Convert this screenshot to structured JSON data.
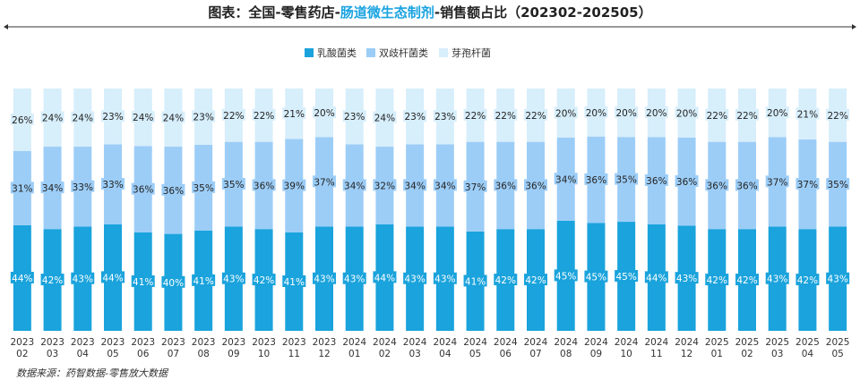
{
  "title": {
    "prefix": "图表：全国-零售药店-",
    "highlight": "肠道微生态制剂",
    "suffix": "-销售额占比（202302-202505）"
  },
  "source": "数据来源：药智数据-零售放大数据",
  "colors": {
    "s1": "#1aa3dc",
    "s2": "#9ccdf7",
    "s3": "#d7eefb",
    "accent": "#1aa3e0"
  },
  "chart_data": {
    "type": "bar",
    "stacked": true,
    "percent": true,
    "legend_position": "top",
    "categories": [
      "2023\n02",
      "2023\n03",
      "2023\n04",
      "2023\n05",
      "2023\n06",
      "2023\n07",
      "2023\n08",
      "2023\n09",
      "2023\n10",
      "2023\n11",
      "2023\n12",
      "2024\n01",
      "2024\n02",
      "2024\n03",
      "2024\n04",
      "2024\n05",
      "2024\n06",
      "2024\n07",
      "2024\n08",
      "2024\n09",
      "2024\n10",
      "2024\n11",
      "2024\n12",
      "2025\n01",
      "2025\n02",
      "2025\n03",
      "2025\n04",
      "2025\n05"
    ],
    "series": [
      {
        "name": "乳酸菌类",
        "values": [
          44,
          42,
          43,
          44,
          41,
          40,
          41,
          43,
          42,
          41,
          43,
          43,
          44,
          43,
          43,
          41,
          42,
          42,
          45,
          45,
          45,
          44,
          43,
          42,
          42,
          43,
          42,
          43
        ]
      },
      {
        "name": "双歧杆菌类",
        "values": [
          31,
          34,
          33,
          33,
          36,
          36,
          35,
          35,
          36,
          39,
          37,
          34,
          32,
          34,
          34,
          37,
          36,
          36,
          34,
          36,
          35,
          36,
          36,
          36,
          36,
          37,
          37,
          35
        ]
      },
      {
        "name": "芽孢杆菌",
        "values": [
          26,
          24,
          24,
          23,
          24,
          24,
          23,
          22,
          22,
          21,
          20,
          23,
          24,
          23,
          23,
          22,
          22,
          22,
          20,
          20,
          20,
          20,
          20,
          22,
          22,
          20,
          21,
          22
        ]
      }
    ]
  }
}
